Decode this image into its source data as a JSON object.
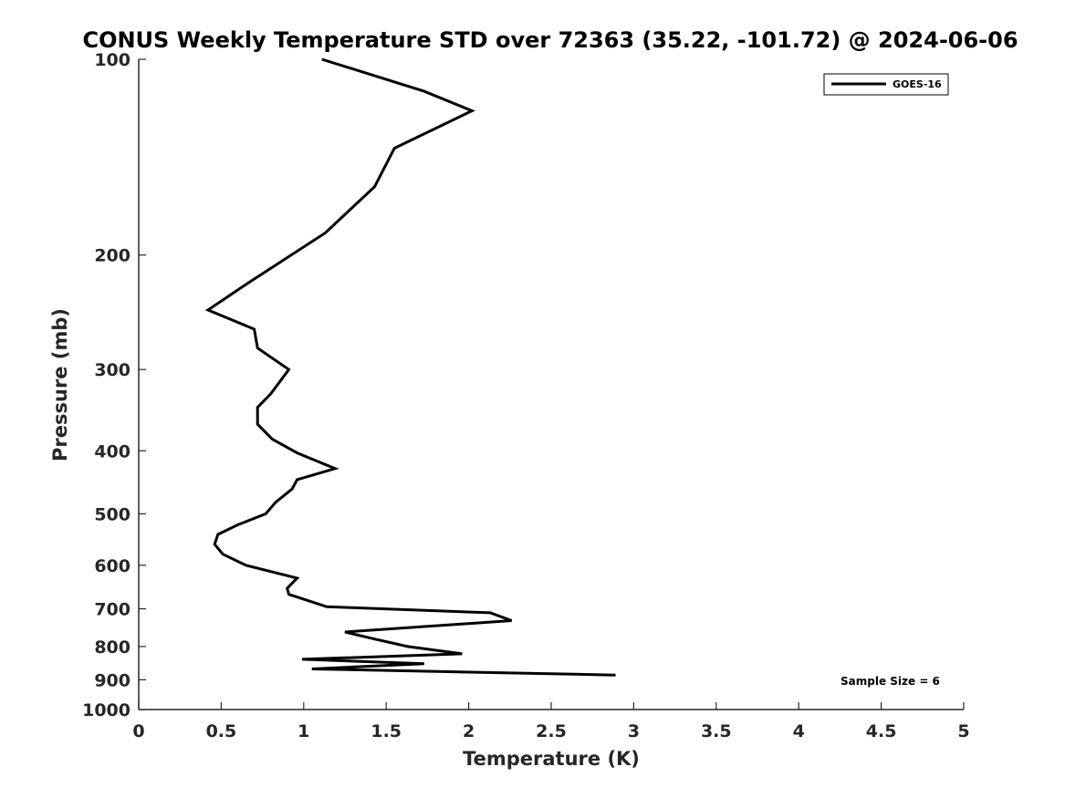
{
  "chart_data": {
    "type": "line",
    "title": "CONUS Weekly Temperature STD over 72363 (35.22, -101.72) @ 2024-06-06",
    "xlabel": "Temperature (K)",
    "ylabel": "Pressure (mb)",
    "xlim": [
      0,
      5
    ],
    "ylim": [
      100,
      1000
    ],
    "yscale": "log",
    "yreversed": true,
    "xticks": [
      "0",
      "0.5",
      "1",
      "1.5",
      "2",
      "2.5",
      "3",
      "3.5",
      "4",
      "4.5",
      "5"
    ],
    "yticks": [
      "100",
      "200",
      "300",
      "400",
      "500",
      "600",
      "700",
      "800",
      "900",
      "1000"
    ],
    "grid": false,
    "legend_position": "top-right",
    "line_color": "#000000",
    "series": [
      {
        "name": "GOES-16",
        "x": [
          1.11,
          1.73,
          2.02,
          1.55,
          1.43,
          1.13,
          0.65,
          0.42,
          0.7,
          0.72,
          0.91,
          0.8,
          0.72,
          0.72,
          0.81,
          0.96,
          1.19,
          0.96,
          0.93,
          0.83,
          0.77,
          0.6,
          0.48,
          0.46,
          0.51,
          0.65,
          0.96,
          0.9,
          0.91,
          1.14,
          2.13,
          2.26,
          1.25,
          1.43,
          1.63,
          1.96,
          0.99,
          1.73,
          1.05,
          2.89
        ],
        "y": [
          100,
          112,
          120,
          137,
          157,
          185,
          222,
          243,
          260,
          278,
          300,
          327,
          343,
          364,
          384,
          403,
          426,
          443,
          458,
          480,
          500,
          520,
          538,
          557,
          577,
          600,
          628,
          651,
          665,
          695,
          710,
          730,
          760,
          779,
          800,
          821,
          837,
          850,
          866,
          885
        ]
      }
    ],
    "annotations": [
      "Sample Size = 6"
    ]
  }
}
